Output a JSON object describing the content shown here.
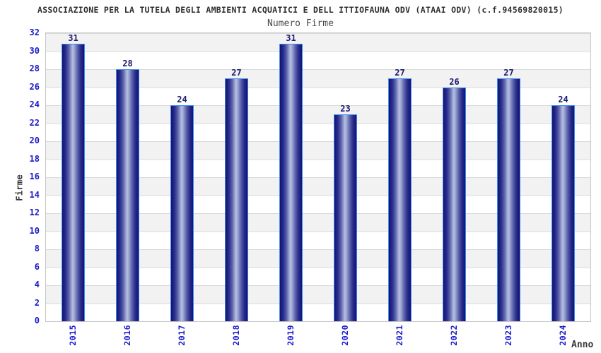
{
  "chart_data": {
    "type": "bar",
    "title": "ASSOCIAZIONE PER LA TUTELA DEGLI AMBIENTI ACQUATICI E DELL ITTIOFAUNA ODV (ATAAI ODV) (c.f.94569820015)",
    "subtitle": "Numero Firme",
    "xlabel": "Anno",
    "ylabel": "Firme",
    "categories": [
      "2015",
      "2016",
      "2017",
      "2018",
      "2019",
      "2020",
      "2021",
      "2022",
      "2023",
      "2024"
    ],
    "values": [
      31,
      28,
      24,
      27,
      31,
      23,
      27,
      26,
      27,
      24
    ],
    "ylim": [
      0,
      32
    ],
    "ytick_step": 2,
    "legend": "none",
    "grid": "horizontal-stripes",
    "colors": {
      "bar_dark": "#12126e",
      "bar_highlight": "#b8bfe4",
      "bar_border": "#3d8df0",
      "tick_label_blue": "#1a1acc",
      "value_label_navy": "#1b1b6e",
      "stripe_gray": "#f2f2f2",
      "gridline": "#d9d9d9",
      "plot_border": "#c6c6c6"
    }
  }
}
